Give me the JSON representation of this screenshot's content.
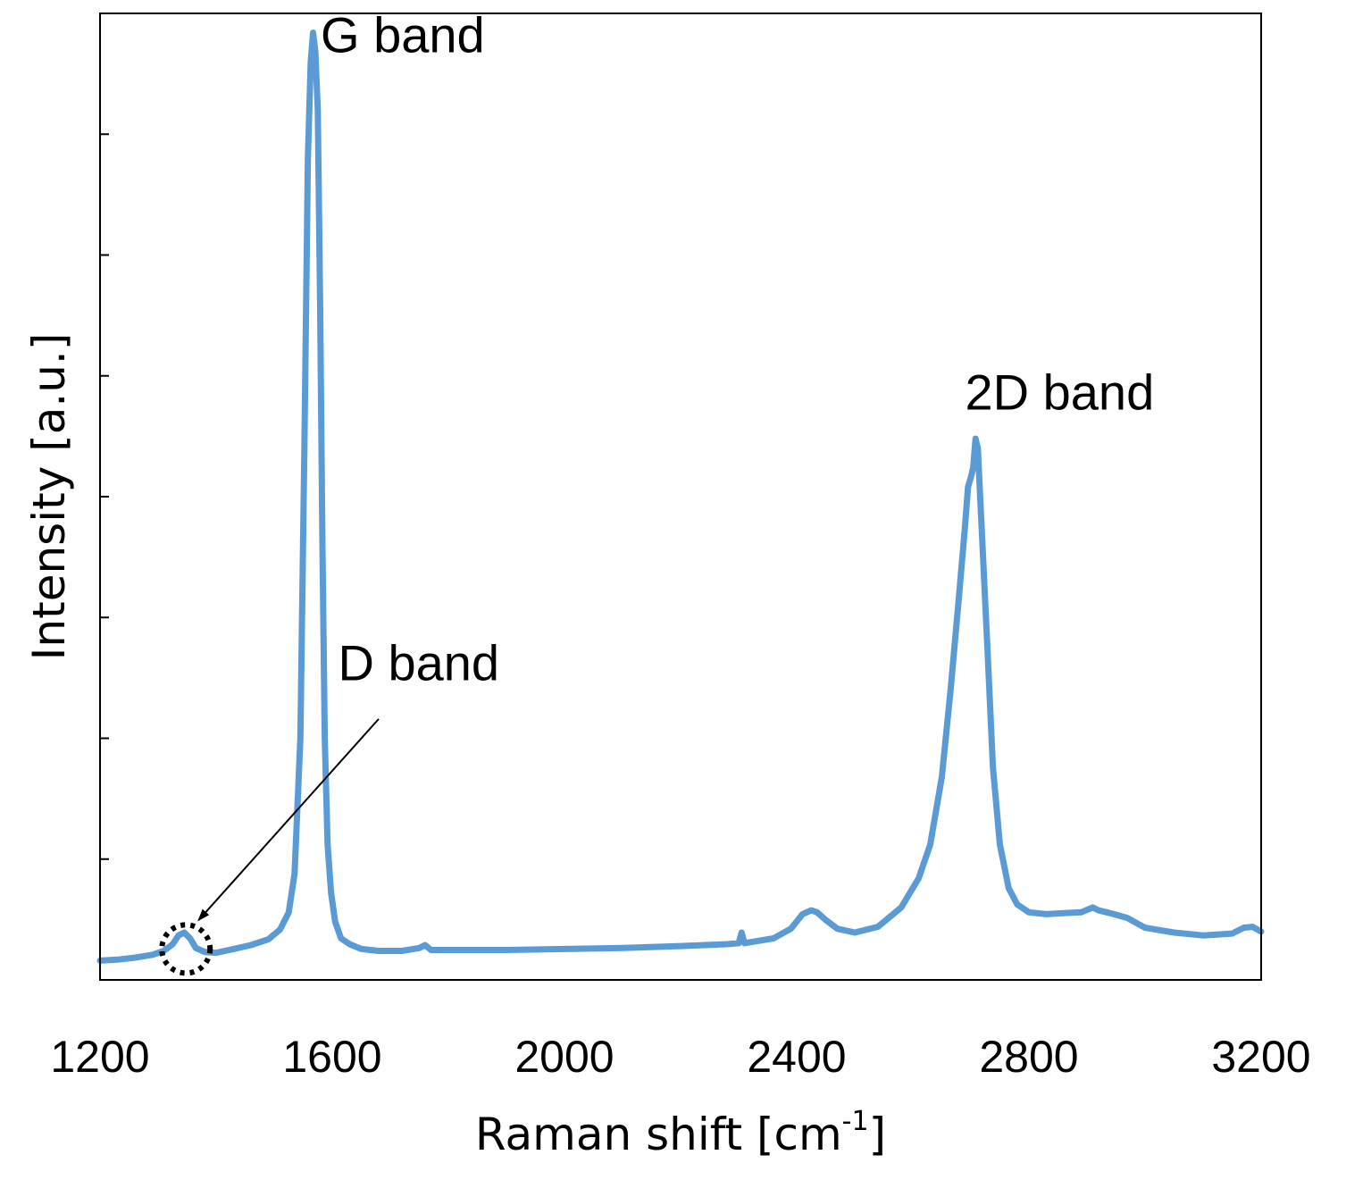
{
  "chart_data": {
    "type": "line",
    "title": "",
    "xlabel": "Raman shift [cm",
    "xlabel_sup": "-1",
    "xlabel_tail": "]",
    "ylabel": "Intensity [a.u.]",
    "xlim": [
      1200,
      3200
    ],
    "ylim": [
      0,
      100
    ],
    "x_ticks": [
      1200,
      1600,
      2000,
      2400,
      2800,
      3200
    ],
    "x_tick_labels": [
      "1200",
      "1600",
      "2000",
      "2400",
      "2800",
      "3200"
    ],
    "y_ticks": [
      12.5,
      25,
      37.5,
      50,
      62.5,
      75,
      87.5
    ],
    "y_tick_labels_shown": false,
    "grid": false,
    "legend": "none",
    "color": "#5b9bd5",
    "series": [
      {
        "x": [
          1200,
          1230,
          1260,
          1290,
          1310,
          1325,
          1335,
          1345,
          1355,
          1365,
          1380,
          1400,
          1430,
          1460,
          1490,
          1510,
          1525,
          1535,
          1545,
          1552,
          1558,
          1563,
          1567,
          1571,
          1575,
          1579,
          1583,
          1587,
          1592,
          1598,
          1605,
          1615,
          1630,
          1650,
          1680,
          1720,
          1750,
          1760,
          1770,
          1800,
          1900,
          2000,
          2100,
          2200,
          2280,
          2300,
          2305,
          2310,
          2320,
          2360,
          2390,
          2410,
          2425,
          2435,
          2450,
          2470,
          2500,
          2540,
          2580,
          2610,
          2630,
          2650,
          2665,
          2680,
          2690,
          2695,
          2700,
          2704,
          2708,
          2712,
          2716,
          2720,
          2728,
          2738,
          2750,
          2765,
          2780,
          2800,
          2830,
          2860,
          2890,
          2910,
          2920,
          2940,
          2970,
          3000,
          3050,
          3100,
          3150,
          3170,
          3185,
          3200
        ],
        "y": [
          2.0,
          2.1,
          2.3,
          2.6,
          3.0,
          3.7,
          4.6,
          4.9,
          4.3,
          3.3,
          2.9,
          2.8,
          3.2,
          3.6,
          4.2,
          5.2,
          7.0,
          11.0,
          25.0,
          55.0,
          85.0,
          95.0,
          98.0,
          96.0,
          90.0,
          70.0,
          45.0,
          25.0,
          14.0,
          9.0,
          6.0,
          4.3,
          3.7,
          3.2,
          3.0,
          3.0,
          3.3,
          3.6,
          3.1,
          3.1,
          3.1,
          3.2,
          3.3,
          3.5,
          3.7,
          3.8,
          4.9,
          3.8,
          3.9,
          4.3,
          5.3,
          6.8,
          7.2,
          7.0,
          6.2,
          5.3,
          4.9,
          5.5,
          7.5,
          10.5,
          14.0,
          21.0,
          30.0,
          40.0,
          47.0,
          51.0,
          52.0,
          53.0,
          56.0,
          55.0,
          50.0,
          45.0,
          35.0,
          22.0,
          14.0,
          9.5,
          7.8,
          7.0,
          6.8,
          6.9,
          7.0,
          7.5,
          7.2,
          6.9,
          6.4,
          5.4,
          4.9,
          4.6,
          4.8,
          5.4,
          5.5,
          5.0
        ]
      }
    ],
    "annotations": [
      {
        "text": "G band",
        "x": 1580,
        "y": 96
      },
      {
        "text": "2D band",
        "x": 2690,
        "y": 59
      },
      {
        "text": "D band",
        "x": 1610,
        "y": 31
      },
      {
        "type": "arrow",
        "from": [
          1680,
          27
        ],
        "to": [
          1370,
          6.2
        ]
      },
      {
        "type": "circle",
        "x": 1348,
        "y": 3.2
      }
    ]
  }
}
